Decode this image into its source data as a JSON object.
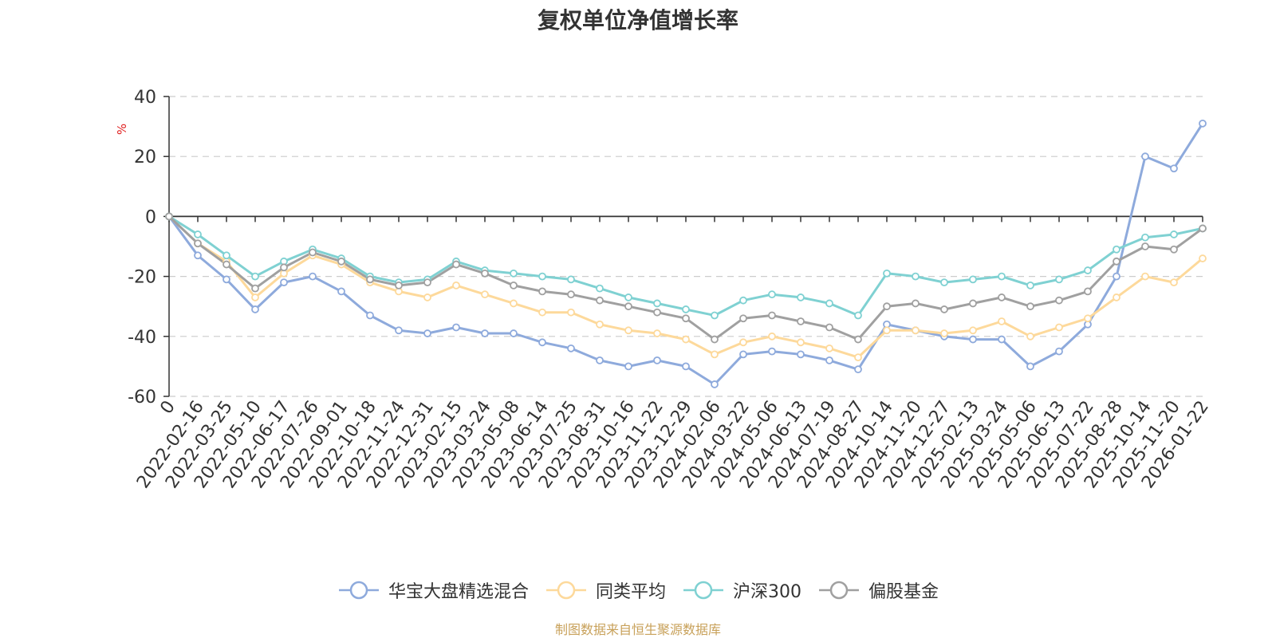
{
  "title": "复权单位净值增长率",
  "footer": "制图数据来自恒生聚源数据库",
  "chart_data": {
    "type": "line",
    "title": "复权单位净值增长率",
    "xlabel": "",
    "ylabel": "%",
    "ylim": [
      -60,
      40
    ],
    "yticks": [
      40,
      20,
      0,
      -20,
      -40,
      -60
    ],
    "grid": true,
    "legend_position": "bottom",
    "x": [
      "0",
      "2022-02-16",
      "2022-03-25",
      "2022-05-10",
      "2022-06-17",
      "2022-07-26",
      "2022-09-01",
      "2022-10-18",
      "2022-11-24",
      "2022-12-31",
      "2023-02-15",
      "2023-03-24",
      "2023-05-08",
      "2023-06-14",
      "2023-07-25",
      "2023-08-31",
      "2023-10-16",
      "2023-11-22",
      "2023-12-29",
      "2024-02-06",
      "2024-03-22",
      "2024-05-06",
      "2024-06-13",
      "2024-07-19",
      "2024-08-27",
      "2024-10-14",
      "2024-11-20",
      "2024-12-27",
      "2025-02-13",
      "2025-03-24",
      "2025-05-06",
      "2025-06-13",
      "2025-07-22",
      "2025-08-28",
      "2025-10-14",
      "2025-11-20",
      "2026-01-22"
    ],
    "series": [
      {
        "name": "华宝大盘精选混合",
        "color": "#8eaadc",
        "values": [
          0,
          -13,
          -21,
          -31,
          -22,
          -20,
          -25,
          -33,
          -38,
          -39,
          -37,
          -39,
          -39,
          -42,
          -44,
          -48,
          -50,
          -48,
          -50,
          -56,
          -46,
          -45,
          -46,
          -48,
          -51,
          -36,
          -38,
          -40,
          -41,
          -41,
          -50,
          -45,
          -36,
          -20,
          20,
          16,
          31
        ]
      },
      {
        "name": "同类平均",
        "color": "#fdd99b",
        "values": [
          0,
          -9,
          -15,
          -27,
          -19,
          -13,
          -16,
          -22,
          -25,
          -27,
          -23,
          -26,
          -29,
          -32,
          -32,
          -36,
          -38,
          -39,
          -41,
          -46,
          -42,
          -40,
          -42,
          -44,
          -47,
          -38,
          -38,
          -39,
          -38,
          -35,
          -40,
          -37,
          -34,
          -27,
          -20,
          -22,
          -14
        ]
      },
      {
        "name": "沪深300",
        "color": "#7fd1d2",
        "values": [
          0,
          -6,
          -13,
          -20,
          -15,
          -11,
          -14,
          -20,
          -22,
          -21,
          -15,
          -18,
          -19,
          -20,
          -21,
          -24,
          -27,
          -29,
          -31,
          -33,
          -28,
          -26,
          -27,
          -29,
          -33,
          -19,
          -20,
          -22,
          -21,
          -20,
          -23,
          -21,
          -18,
          -11,
          -7,
          -6,
          -4
        ]
      },
      {
        "name": "偏股基金",
        "color": "#a0a0a0",
        "values": [
          0,
          -9,
          -16,
          -24,
          -17,
          -12,
          -15,
          -21,
          -23,
          -22,
          -16,
          -19,
          -23,
          -25,
          -26,
          -28,
          -30,
          -32,
          -34,
          -41,
          -34,
          -33,
          -35,
          -37,
          -41,
          -30,
          -29,
          -31,
          -29,
          -27,
          -30,
          -28,
          -25,
          -15,
          -10,
          -11,
          -4
        ]
      }
    ]
  }
}
